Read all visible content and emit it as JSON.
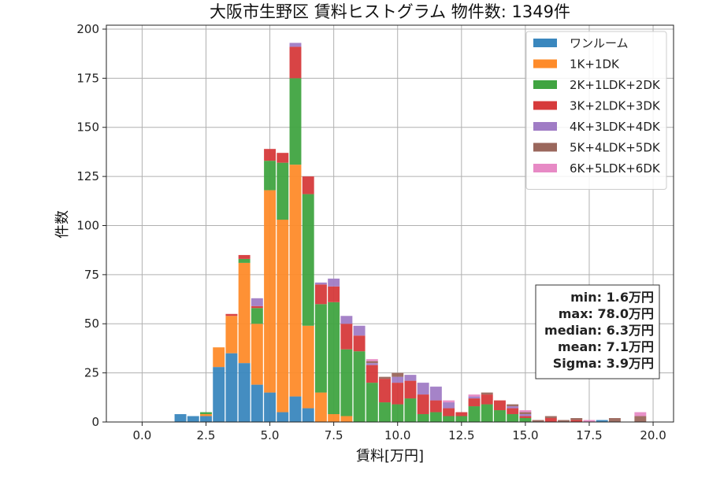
{
  "chart_data": {
    "type": "bar",
    "stacked": true,
    "title": "大阪市生野区 賃料ヒストグラム 物件数: 1349件",
    "xlabel": "賃料[万円]",
    "ylabel": "件数",
    "xlim": [
      -1.4,
      20.8
    ],
    "ylim": [
      0,
      202
    ],
    "xticks": [
      0.0,
      2.5,
      5.0,
      7.5,
      10.0,
      12.5,
      15.0,
      17.5,
      20.0
    ],
    "xtick_labels": [
      "0.0",
      "2.5",
      "5.0",
      "7.5",
      "10.0",
      "12.5",
      "15.0",
      "17.5",
      "20.0"
    ],
    "yticks": [
      0,
      25,
      50,
      75,
      100,
      125,
      150,
      175,
      200
    ],
    "ytick_labels": [
      "0",
      "25",
      "50",
      "75",
      "100",
      "125",
      "150",
      "175",
      "200"
    ],
    "grid": true,
    "legend_position": "top-right",
    "bin_width": 0.5,
    "x": [
      1.5,
      2.0,
      2.5,
      3.0,
      3.5,
      4.0,
      4.5,
      5.0,
      5.5,
      6.0,
      6.5,
      7.0,
      7.5,
      8.0,
      8.5,
      9.0,
      9.5,
      10.0,
      10.5,
      11.0,
      11.5,
      12.0,
      12.5,
      13.0,
      13.5,
      14.0,
      14.5,
      15.0,
      15.5,
      16.0,
      16.5,
      17.0,
      17.5,
      18.0,
      18.5,
      19.0,
      19.5
    ],
    "series": [
      {
        "name": "ワンルーム",
        "color": "#3a87be",
        "values": [
          4,
          3,
          3,
          28,
          35,
          30,
          19,
          15,
          5,
          13,
          7,
          0,
          0,
          0,
          0,
          0,
          0,
          0,
          0,
          0,
          0,
          0,
          0,
          0,
          0,
          0,
          0,
          0,
          0,
          0,
          0,
          0,
          0,
          1,
          0,
          0,
          0
        ]
      },
      {
        "name": "1K+1DK",
        "color": "#fe8b2a",
        "values": [
          0,
          0,
          1,
          10,
          19,
          51,
          31,
          103,
          98,
          118,
          42,
          15,
          4,
          3,
          0,
          0,
          0,
          0,
          0,
          0,
          0,
          0,
          0,
          0,
          0,
          0,
          0,
          0,
          0,
          0,
          0,
          0,
          0,
          0,
          0,
          0,
          0
        ]
      },
      {
        "name": "2K+1LDK+2DK",
        "color": "#40a441",
        "values": [
          0,
          0,
          1,
          0,
          0,
          2,
          8,
          15,
          29,
          44,
          67,
          45,
          57,
          34,
          36,
          20,
          10,
          9,
          12,
          4,
          5,
          3,
          3,
          8,
          9,
          6,
          4,
          2,
          0,
          0,
          0,
          0,
          0,
          0,
          0,
          0,
          0
        ]
      },
      {
        "name": "3K+2LDK+3DK",
        "color": "#d63a3b",
        "values": [
          0,
          0,
          0,
          0,
          1,
          2,
          1,
          6,
          5,
          16,
          9,
          10,
          8,
          13,
          8,
          9,
          12,
          11,
          9,
          10,
          6,
          4,
          2,
          4,
          5,
          5,
          3,
          1,
          0,
          2,
          0,
          1,
          0,
          0,
          0,
          0,
          0
        ]
      },
      {
        "name": "4K+3LDK+4DK",
        "color": "#a07cc5",
        "values": [
          0,
          0,
          0,
          0,
          0,
          0,
          4,
          0,
          0,
          2,
          0,
          1,
          4,
          4,
          5,
          1,
          0,
          3,
          3,
          6,
          7,
          3,
          0,
          1,
          0,
          0,
          1,
          1,
          0,
          0,
          0,
          0,
          0,
          0,
          0,
          0,
          0
        ]
      },
      {
        "name": "5K+4LDK+5DK",
        "color": "#9a675c",
        "values": [
          0,
          0,
          0,
          0,
          0,
          0,
          0,
          0,
          0,
          0,
          0,
          0,
          0,
          0,
          0,
          1,
          1,
          2,
          0,
          0,
          0,
          0,
          0,
          0,
          1,
          0,
          1,
          1,
          1,
          1,
          1,
          1,
          0,
          0,
          2,
          0,
          3
        ]
      },
      {
        "name": "6K+5LDK+6DK",
        "color": "#e78ac5",
        "values": [
          0,
          0,
          0,
          0,
          0,
          0,
          0,
          0,
          0,
          0,
          0,
          0,
          0,
          0,
          0,
          1,
          0,
          0,
          0,
          0,
          0,
          1,
          0,
          1,
          0,
          0,
          0,
          1,
          0,
          0,
          0,
          0,
          1,
          0,
          0,
          0,
          2
        ]
      }
    ],
    "stats_lines": [
      "min: 1.6万円",
      "max: 78.0万円",
      "median: 6.3万円",
      "mean: 7.1万円",
      "Sigma: 3.9万円"
    ]
  }
}
